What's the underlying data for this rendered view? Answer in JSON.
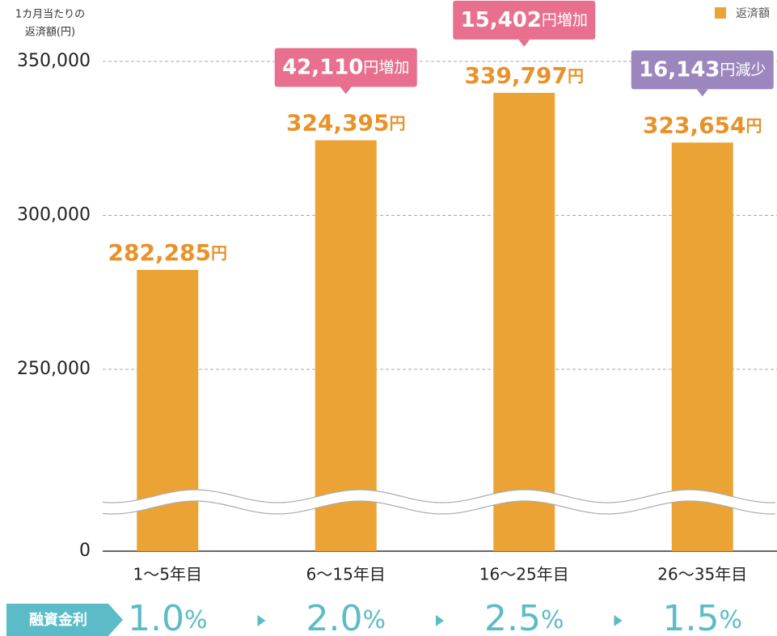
{
  "chart_data": {
    "type": "bar",
    "ylabel": [
      "1カ月当たりの",
      "返済額(円)"
    ],
    "categories": [
      "1〜5年目",
      "6〜15年目",
      "16〜25年目",
      "26〜35年目"
    ],
    "series": [
      {
        "name": "返済額",
        "color": "#eba336",
        "values": [
          282285,
          324395,
          339797,
          323654
        ],
        "value_labels": [
          "282,285",
          "324,395",
          "339,797",
          "323,654"
        ]
      }
    ],
    "value_unit": "円",
    "ylim": [
      0,
      350000
    ],
    "yticks": [
      0,
      {
        "value": 250000,
        "label": "250,000"
      },
      {
        "value": 300000,
        "label": "300,000"
      },
      {
        "value": 350000,
        "label": "350,000"
      }
    ],
    "axis_break": true,
    "grid": true,
    "legend": "top-right",
    "change_labels": [
      null,
      {
        "text": "42,110",
        "suffix": "円増加",
        "color": "#e8708e"
      },
      {
        "text": "15,402",
        "suffix": "円増加",
        "color": "#e8708e"
      },
      {
        "text": "16,143",
        "suffix": "円減少",
        "color": "#9b86bd"
      }
    ],
    "rate_label": "融資金利",
    "rates": [
      "1.0",
      "2.0",
      "2.5",
      "1.5"
    ],
    "rate_unit": "%",
    "rate_color": "#5bbcc7"
  }
}
